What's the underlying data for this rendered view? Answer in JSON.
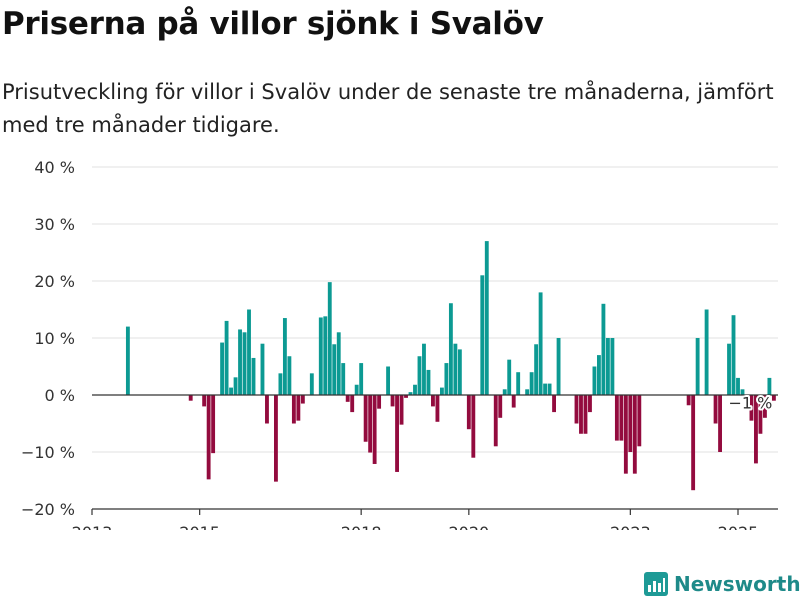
{
  "header": {
    "title": "Priserna på villor sjönk i Svalöv",
    "subtitle": "Prisutveckling för villor i Svalöv under de senaste tre månaderna, jämfört med tre månader tidigare."
  },
  "brand": {
    "name": "Newsworthy",
    "color": "#1e9a96"
  },
  "chart_data": {
    "type": "bar",
    "colors": {
      "positive": "#0c9a93",
      "negative": "#930b3e"
    },
    "ylim": [
      -20,
      40
    ],
    "y_ticks": [
      40,
      30,
      20,
      10,
      0,
      -10,
      -20
    ],
    "y_tick_labels": [
      "40 %",
      "30 %",
      "20 %",
      "10 %",
      "0 %",
      "−10 %",
      "−20 %"
    ],
    "xlim": [
      "2013-01",
      "2025-12"
    ],
    "x_ticks": [
      "2013-01",
      "2015-01",
      "2018-01",
      "2020-01",
      "2023-01",
      "2025-01"
    ],
    "x_tick_labels": [
      "2013",
      "2015",
      "2018",
      "2020",
      "2023",
      "2025"
    ],
    "grid": true,
    "annotation": {
      "text": "−1 %",
      "x": "2025-02",
      "y": -1
    },
    "series": [
      {
        "values": [
          [
            "2013-09",
            12
          ],
          [
            "2014-11",
            -1
          ],
          [
            "2015-02",
            -2
          ],
          [
            "2015-03",
            -14.8
          ],
          [
            "2015-04",
            -10.2
          ],
          [
            "2015-06",
            9.2
          ],
          [
            "2015-07",
            13
          ],
          [
            "2015-08",
            1.3
          ],
          [
            "2015-09",
            3.1
          ],
          [
            "2015-10",
            11.5
          ],
          [
            "2015-11",
            11
          ],
          [
            "2015-12",
            15
          ],
          [
            "2016-01",
            6.5
          ],
          [
            "2016-03",
            9
          ],
          [
            "2016-04",
            -5
          ],
          [
            "2016-06",
            -15.2
          ],
          [
            "2016-07",
            3.8
          ],
          [
            "2016-08",
            13.5
          ],
          [
            "2016-09",
            6.8
          ],
          [
            "2016-10",
            -5
          ],
          [
            "2016-11",
            -4.5
          ],
          [
            "2016-12",
            -1.5
          ],
          [
            "2017-02",
            3.8
          ],
          [
            "2017-04",
            13.6
          ],
          [
            "2017-05",
            13.8
          ],
          [
            "2017-06",
            19.8
          ],
          [
            "2017-07",
            8.9
          ],
          [
            "2017-08",
            11
          ],
          [
            "2017-09",
            5.6
          ],
          [
            "2017-10",
            -1.2
          ],
          [
            "2017-11",
            -3
          ],
          [
            "2017-12",
            1.8
          ],
          [
            "2018-01",
            5.6
          ],
          [
            "2018-02",
            -8.2
          ],
          [
            "2018-03",
            -10.1
          ],
          [
            "2018-04",
            -12.1
          ],
          [
            "2018-05",
            -2.4
          ],
          [
            "2018-07",
            5
          ],
          [
            "2018-08",
            -2
          ],
          [
            "2018-09",
            -13.5
          ],
          [
            "2018-10",
            -5.2
          ],
          [
            "2018-11",
            -0.5
          ],
          [
            "2018-12",
            0.5
          ],
          [
            "2019-01",
            1.8
          ],
          [
            "2019-02",
            6.8
          ],
          [
            "2019-03",
            9
          ],
          [
            "2019-04",
            4.4
          ],
          [
            "2019-05",
            -2
          ],
          [
            "2019-06",
            -4.7
          ],
          [
            "2019-07",
            1.3
          ],
          [
            "2019-08",
            5.6
          ],
          [
            "2019-09",
            16.1
          ],
          [
            "2019-10",
            9
          ],
          [
            "2019-11",
            8
          ],
          [
            "2020-01",
            -6
          ],
          [
            "2020-02",
            -11
          ],
          [
            "2020-04",
            21
          ],
          [
            "2020-05",
            27
          ],
          [
            "2020-07",
            -9
          ],
          [
            "2020-08",
            -4
          ],
          [
            "2020-09",
            1
          ],
          [
            "2020-10",
            6.2
          ],
          [
            "2020-11",
            -2.2
          ],
          [
            "2020-12",
            4
          ],
          [
            "2021-02",
            1
          ],
          [
            "2021-03",
            4
          ],
          [
            "2021-04",
            8.9
          ],
          [
            "2021-05",
            18
          ],
          [
            "2021-06",
            2
          ],
          [
            "2021-07",
            2
          ],
          [
            "2021-08",
            -3
          ],
          [
            "2021-09",
            10
          ],
          [
            "2022-01",
            -5
          ],
          [
            "2022-02",
            -6.8
          ],
          [
            "2022-03",
            -6.8
          ],
          [
            "2022-04",
            -3
          ],
          [
            "2022-05",
            5
          ],
          [
            "2022-06",
            7
          ],
          [
            "2022-07",
            16
          ],
          [
            "2022-08",
            10
          ],
          [
            "2022-09",
            10
          ],
          [
            "2022-10",
            -8
          ],
          [
            "2022-11",
            -8
          ],
          [
            "2022-12",
            -13.8
          ],
          [
            "2023-01",
            -10
          ],
          [
            "2023-02",
            -13.8
          ],
          [
            "2023-03",
            -9
          ],
          [
            "2024-02",
            -1.8
          ],
          [
            "2024-03",
            -16.7
          ],
          [
            "2024-04",
            10
          ],
          [
            "2024-06",
            15
          ],
          [
            "2024-08",
            -5
          ],
          [
            "2024-09",
            -10
          ],
          [
            "2024-11",
            9
          ],
          [
            "2024-12",
            14
          ],
          [
            "2025-01",
            3
          ],
          [
            "2025-02",
            1
          ],
          [
            "2025-04",
            -4.5
          ],
          [
            "2025-05",
            -12
          ],
          [
            "2025-06",
            -6.8
          ],
          [
            "2025-07",
            -4
          ],
          [
            "2025-08",
            3
          ],
          [
            "2025-09",
            -1
          ]
        ]
      }
    ]
  }
}
